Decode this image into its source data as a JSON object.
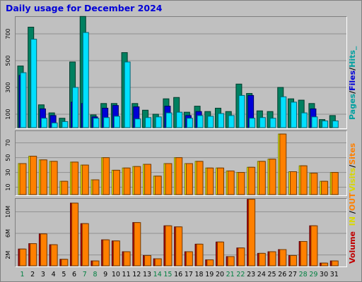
{
  "title": "Daily usage for December 2024",
  "legends": {
    "pages": "Pages",
    "files": "Files",
    "hits": "Hits",
    "visits": "Visits",
    "sites": "Sites",
    "kbin": "IN",
    "kbout": "OUT",
    "volume": "Volume",
    "sep": "/",
    "hits_trail": "_"
  },
  "colors": {
    "hits": "#008060",
    "files": "#0000d8",
    "pages": "#00e0ff",
    "visits": "#ffff00",
    "sites": "#ff8000",
    "kbin": "#c00000",
    "kbout": "#ff8000",
    "title": "#0000d8",
    "weekend_day": "#008040",
    "weekday": "#000000",
    "grid": "#909090",
    "background": "#c0c0c0"
  },
  "chart_data": [
    {
      "type": "bar",
      "name": "hits-files-pages",
      "categories": [
        "1",
        "2",
        "3",
        "4",
        "5",
        "6",
        "7",
        "8",
        "9",
        "10",
        "11",
        "12",
        "13",
        "14",
        "15",
        "16",
        "17",
        "18",
        "19",
        "20",
        "21",
        "22",
        "23",
        "24",
        "25",
        "26",
        "27",
        "28",
        "29",
        "30",
        "31"
      ],
      "weekend_days": [
        1,
        7,
        8,
        14,
        15,
        21,
        22,
        28,
        29
      ],
      "y_ticks": [
        100,
        300,
        500,
        700
      ],
      "ylim": [
        0,
        800
      ],
      "grid": true,
      "series": [
        {
          "key": "hits",
          "values": [
            460,
            750,
            170,
            110,
            70,
            490,
            830,
            95,
            180,
            180,
            560,
            180,
            130,
            100,
            215,
            225,
            115,
            160,
            120,
            145,
            120,
            325,
            255,
            125,
            120,
            300,
            215,
            205,
            180,
            60,
            90
          ]
        },
        {
          "key": "files",
          "values": [
            390,
            0,
            140,
            90,
            0,
            190,
            180,
            80,
            145,
            165,
            0,
            155,
            0,
            0,
            160,
            0,
            90,
            120,
            0,
            0,
            0,
            0,
            240,
            0,
            0,
            0,
            0,
            0,
            140,
            0,
            0
          ]
        },
        {
          "key": "pages",
          "values": [
            410,
            660,
            70,
            35,
            45,
            300,
            710,
            70,
            75,
            85,
            490,
            65,
            75,
            80,
            110,
            115,
            70,
            90,
            85,
            105,
            90,
            240,
            70,
            75,
            70,
            230,
            190,
            110,
            80,
            50,
            50
          ]
        }
      ]
    },
    {
      "type": "bar",
      "name": "visits-sites",
      "categories": [
        "1",
        "2",
        "3",
        "4",
        "5",
        "6",
        "7",
        "8",
        "9",
        "10",
        "11",
        "12",
        "13",
        "14",
        "15",
        "16",
        "17",
        "18",
        "19",
        "20",
        "21",
        "22",
        "23",
        "24",
        "25",
        "26",
        "27",
        "28",
        "29",
        "30",
        "31"
      ],
      "y_ticks": [
        10,
        30,
        50,
        70
      ],
      "ylim": [
        0,
        84
      ],
      "grid": true,
      "series": [
        {
          "key": "visits",
          "values": [
            42,
            52,
            47,
            45,
            18,
            44,
            40,
            20,
            50,
            33,
            36,
            38,
            41,
            25,
            42,
            50,
            42,
            45,
            36,
            36,
            32,
            30,
            37,
            45,
            48,
            82,
            31,
            39,
            29,
            18,
            30
          ]
        },
        {
          "key": "sites",
          "values": [
            42,
            52,
            47,
            45,
            18,
            44,
            40,
            20,
            50,
            33,
            36,
            38,
            41,
            25,
            42,
            50,
            42,
            45,
            36,
            36,
            32,
            30,
            37,
            45,
            48,
            82,
            31,
            39,
            29,
            18,
            30
          ]
        }
      ]
    },
    {
      "type": "bar",
      "name": "volume",
      "categories": [
        "1",
        "2",
        "3",
        "4",
        "5",
        "6",
        "7",
        "8",
        "9",
        "10",
        "11",
        "12",
        "13",
        "14",
        "15",
        "16",
        "17",
        "18",
        "19",
        "20",
        "21",
        "22",
        "23",
        "24",
        "25",
        "26",
        "27",
        "28",
        "29",
        "30",
        "31"
      ],
      "y_ticks": [
        "2M",
        "6M",
        "10M"
      ],
      "y_tick_values": [
        2,
        6,
        10
      ],
      "ylim": [
        0,
        12
      ],
      "grid": true,
      "series": [
        {
          "key": "kbin",
          "values": [
            3.1,
            4.1,
            5.9,
            3.9,
            1.2,
            11.6,
            7.8,
            0.9,
            4.8,
            4.6,
            2.6,
            8.0,
            1.9,
            1.3,
            7.4,
            7.2,
            2.6,
            4.0,
            1.1,
            4.4,
            1.7,
            3.3,
            12.3,
            2.3,
            2.6,
            3.0,
            1.9,
            4.5,
            7.4,
            0.5,
            0.9
          ]
        },
        {
          "key": "kbout",
          "values": [
            3.1,
            4.1,
            5.9,
            3.9,
            1.2,
            11.6,
            7.8,
            0.9,
            4.8,
            4.6,
            2.6,
            8.0,
            1.9,
            1.3,
            7.4,
            7.2,
            2.6,
            4.0,
            1.1,
            4.4,
            1.7,
            3.3,
            12.3,
            2.3,
            2.6,
            3.0,
            1.9,
            4.5,
            7.4,
            0.5,
            0.9
          ]
        }
      ]
    }
  ]
}
